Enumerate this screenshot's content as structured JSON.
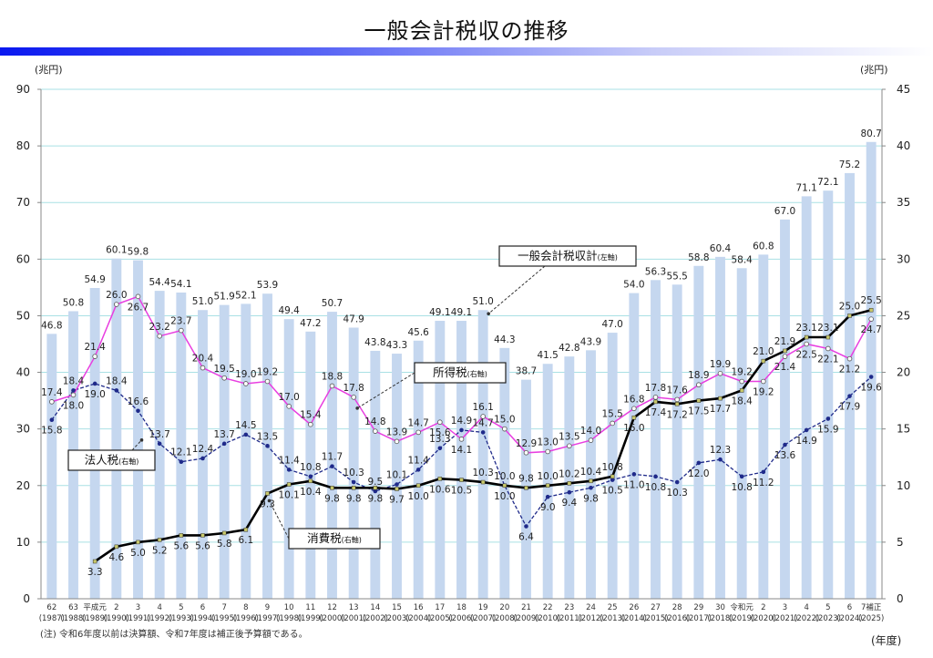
{
  "title": "一般会計税収の推移",
  "note": "(注) 令和6年度以前は決算額、令和7年度は補正後予算額である。",
  "x_unit": "(年度)",
  "chart_data": {
    "type": "bar",
    "title": "一般会計税収の推移",
    "xlabel": "(年度)",
    "ylabel_left": "(兆円)",
    "ylabel_right": "(兆円)",
    "ylim_left": [
      0,
      90
    ],
    "ylim_right": [
      0,
      45
    ],
    "yticks_left": [
      0,
      10,
      20,
      30,
      40,
      50,
      60,
      70,
      80,
      90
    ],
    "yticks_right": [
      0,
      5,
      10,
      15,
      20,
      25,
      30,
      35,
      40,
      45
    ],
    "grid": true,
    "categories": [
      "62",
      "63",
      "平成元",
      "2",
      "3",
      "4",
      "5",
      "6",
      "7",
      "8",
      "9",
      "10",
      "11",
      "12",
      "13",
      "14",
      "15",
      "16",
      "17",
      "18",
      "19",
      "20",
      "21",
      "22",
      "23",
      "24",
      "25",
      "26",
      "27",
      "28",
      "29",
      "30",
      "令和元",
      "2",
      "3",
      "4",
      "5",
      "6",
      "7補正"
    ],
    "categories_western": [
      "(1987)",
      "(1988)",
      "(1989)",
      "(1990)",
      "(1991)",
      "(1992)",
      "(1993)",
      "(1994)",
      "(1995)",
      "(1996)",
      "(1997)",
      "(1998)",
      "(1999)",
      "(2000)",
      "(2001)",
      "(2002)",
      "(2003)",
      "(2004)",
      "(2005)",
      "(2006)",
      "(2007)",
      "(2008)",
      "(2009)",
      "(2010)",
      "(2011)",
      "(2012)",
      "(2013)",
      "(2014)",
      "(2015)",
      "(2016)",
      "(2017)",
      "(2018)",
      "(2019)",
      "(2020)",
      "(2021)",
      "(2022)",
      "(2023)",
      "(2024)",
      "(2025)"
    ],
    "series": [
      {
        "name": "一般会計税収計",
        "axis": "left",
        "kind": "bar",
        "color": "#c5d7ef",
        "values": [
          46.8,
          50.8,
          54.9,
          60.1,
          59.8,
          54.4,
          54.1,
          51.0,
          51.9,
          52.1,
          53.9,
          49.4,
          47.2,
          50.7,
          47.9,
          43.8,
          43.3,
          45.6,
          49.1,
          49.1,
          51.0,
          44.3,
          38.7,
          41.5,
          42.8,
          43.9,
          47.0,
          54.0,
          56.3,
          55.5,
          58.8,
          60.4,
          58.4,
          60.8,
          67.0,
          71.1,
          72.1,
          75.2,
          80.7
        ]
      },
      {
        "name": "所得税",
        "axis": "right",
        "kind": "line",
        "color": "#e83ee0",
        "values": [
          17.4,
          18.0,
          21.4,
          26.0,
          26.7,
          23.2,
          23.7,
          20.4,
          19.5,
          19.0,
          19.2,
          17.0,
          15.4,
          18.8,
          17.8,
          14.8,
          13.9,
          14.7,
          15.6,
          14.1,
          16.1,
          15.0,
          12.9,
          13.0,
          13.5,
          14.0,
          15.5,
          16.8,
          17.8,
          17.6,
          18.9,
          19.9,
          19.2,
          19.2,
          21.4,
          22.5,
          22.1,
          21.2,
          24.7
        ]
      },
      {
        "name": "法人税",
        "axis": "right",
        "kind": "dashed-line",
        "color": "#1f2a8a",
        "values": [
          15.8,
          18.4,
          19.0,
          18.4,
          16.6,
          13.7,
          12.1,
          12.4,
          13.7,
          14.5,
          13.5,
          11.4,
          10.8,
          11.7,
          10.3,
          9.5,
          10.1,
          11.4,
          13.3,
          14.9,
          14.7,
          10.0,
          6.4,
          9.0,
          9.4,
          9.8,
          10.5,
          11.0,
          10.8,
          10.3,
          12.0,
          12.3,
          10.8,
          11.2,
          13.6,
          14.9,
          15.9,
          17.9,
          19.6
        ]
      },
      {
        "name": "消費税",
        "axis": "right",
        "kind": "line",
        "color": "#000000",
        "values": [
          null,
          null,
          3.3,
          4.6,
          5.0,
          5.2,
          5.6,
          5.6,
          5.8,
          6.1,
          9.3,
          10.1,
          10.4,
          9.8,
          9.8,
          9.8,
          9.7,
          10.0,
          10.6,
          10.5,
          10.3,
          10.0,
          9.8,
          10.0,
          10.2,
          10.4,
          10.8,
          16.0,
          17.4,
          17.2,
          17.5,
          17.7,
          18.4,
          21.0,
          21.9,
          23.1,
          23.1,
          25.0,
          25.5
        ]
      }
    ],
    "annotations": [
      {
        "text": "一般会計税収計",
        "suffix": "(左軸)",
        "points_to": "一般会計税収計",
        "year_index": 20
      },
      {
        "text": "所得税",
        "suffix": "(右軸)",
        "points_to": "所得税",
        "year_index": 14
      },
      {
        "text": "法人税",
        "suffix": "(右軸)",
        "points_to": "法人税",
        "year_index": 4
      },
      {
        "text": "消費税",
        "suffix": "(右軸)",
        "points_to": "消費税",
        "year_index": 10
      }
    ]
  }
}
